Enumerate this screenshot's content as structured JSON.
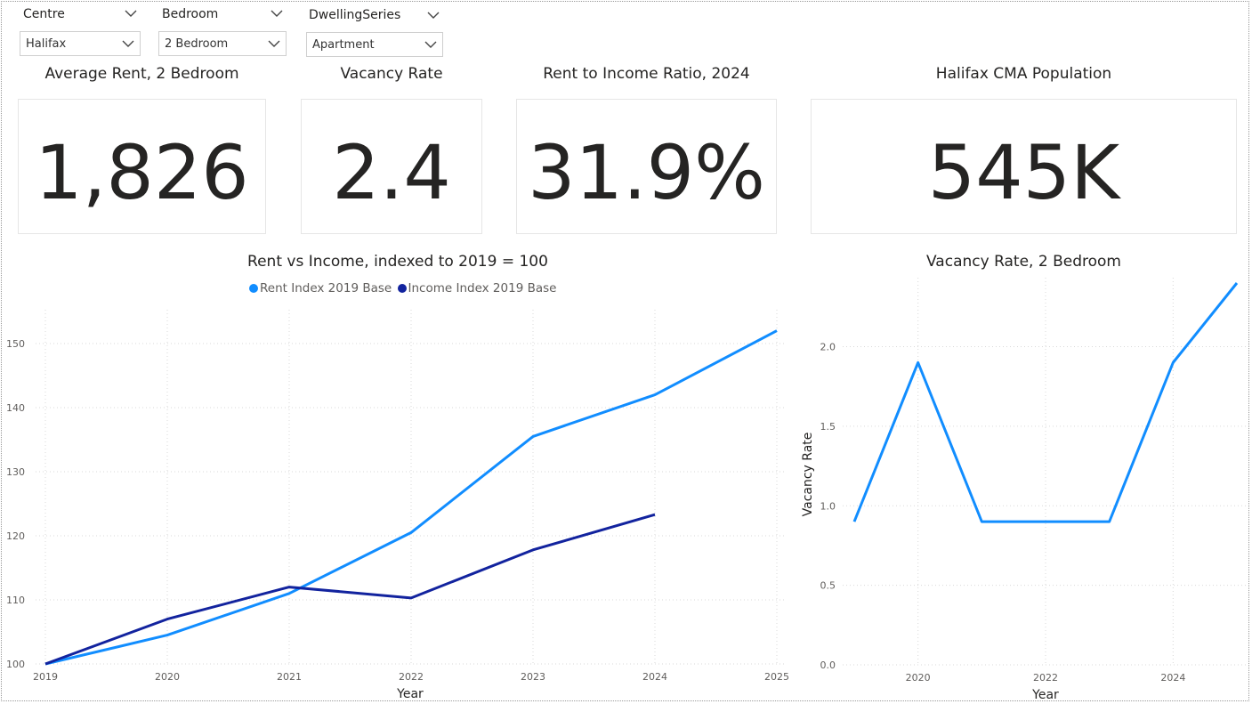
{
  "slicers": [
    {
      "label": "Centre",
      "value": "Halifax"
    },
    {
      "label": "Bedroom",
      "value": "2 Bedroom"
    },
    {
      "label": "DwellingSeries",
      "value": "Apartment"
    }
  ],
  "cards": [
    {
      "title": "Average Rent, 2 Bedroom",
      "value": "1,826"
    },
    {
      "title": "Vacancy Rate",
      "value": "2.4"
    },
    {
      "title": "Rent to Income Ratio, 2024",
      "value": "31.9%"
    },
    {
      "title": "Halifax CMA Population",
      "value": "545K"
    }
  ],
  "colors": {
    "rent": "#118DFF",
    "income": "#12239E",
    "vacancy": "#118DFF",
    "grid": "#d9d9d9"
  },
  "icons": {
    "slicer_chevron": "chevron-down-icon"
  },
  "chart_data": [
    {
      "type": "line",
      "title": "Rent vs Income, indexed to 2019 = 100",
      "xlabel": "Year",
      "ylabel": "",
      "x": [
        2019,
        2020,
        2021,
        2022,
        2023,
        2024,
        2025
      ],
      "xlim": [
        2019,
        2025
      ],
      "ylim": [
        100,
        155
      ],
      "yticks": [
        100,
        110,
        120,
        130,
        140,
        150
      ],
      "grid": true,
      "legend_position": "top-center",
      "series": [
        {
          "name": "Rent Index 2019 Base",
          "values": [
            100,
            104.5,
            111,
            120.5,
            135.5,
            142,
            152
          ]
        },
        {
          "name": "Income Index 2019 Base",
          "values": [
            100,
            107,
            112,
            110.3,
            117.8,
            123.3,
            null
          ]
        }
      ]
    },
    {
      "type": "line",
      "title": "Vacancy Rate, 2 Bedroom",
      "xlabel": "Year",
      "ylabel": "Vacancy Rate",
      "x": [
        2019,
        2020,
        2021,
        2022,
        2023,
        2024,
        2025
      ],
      "xticks": [
        2020,
        2022,
        2024
      ],
      "ylim": [
        0,
        2.4
      ],
      "yticks": [
        0.0,
        0.5,
        1.0,
        1.5,
        2.0
      ],
      "grid": true,
      "series": [
        {
          "name": "",
          "values": [
            0.9,
            1.9,
            0.9,
            0.9,
            0.9,
            1.9,
            2.4
          ]
        }
      ]
    }
  ]
}
